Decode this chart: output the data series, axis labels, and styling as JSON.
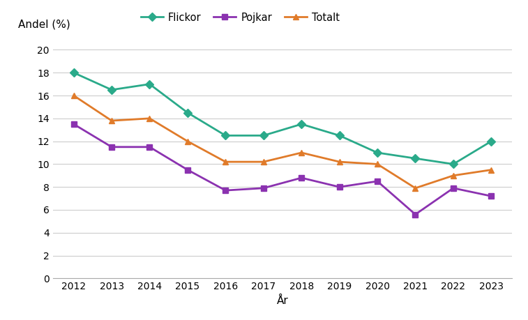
{
  "years": [
    2012,
    2013,
    2014,
    2015,
    2016,
    2017,
    2018,
    2019,
    2020,
    2021,
    2022,
    2023
  ],
  "flickor": [
    18.0,
    16.5,
    17.0,
    14.5,
    12.5,
    12.5,
    13.5,
    12.5,
    11.0,
    10.5,
    10.0,
    12.0
  ],
  "pojkar": [
    13.5,
    11.5,
    11.5,
    9.5,
    7.7,
    7.9,
    8.8,
    8.0,
    8.5,
    5.6,
    7.9,
    7.2
  ],
  "totalt": [
    16.0,
    13.8,
    14.0,
    12.0,
    10.2,
    10.2,
    11.0,
    10.2,
    10.0,
    7.9,
    9.0,
    9.5
  ],
  "flickor_color": "#2aaa8a",
  "pojkar_color": "#8b32b0",
  "totalt_color": "#e07b2a",
  "xlabel": "År",
  "ylabel": "Andel (%)",
  "legend_flickor": "Flickor",
  "legend_pojkar": "Pojkar",
  "legend_totalt": "Totalt",
  "ylim": [
    0,
    21
  ],
  "yticks": [
    0,
    2,
    4,
    6,
    8,
    10,
    12,
    14,
    16,
    18,
    20
  ],
  "background_color": "#ffffff",
  "grid_color": "#cccccc",
  "flickor_marker": "D",
  "pojkar_marker": "s",
  "totalt_marker": "^",
  "linewidth": 2.0,
  "markersize": 6,
  "legend_fontsize": 10.5,
  "tick_fontsize": 10,
  "label_fontsize": 11
}
